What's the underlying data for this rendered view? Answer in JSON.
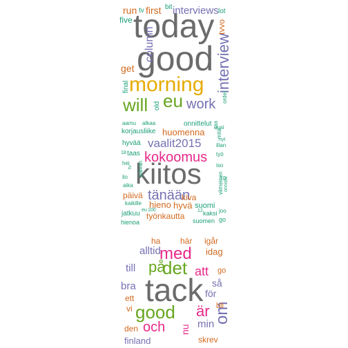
{
  "colors": {
    "gray": "#6b6b6b",
    "orange": "#d2691e",
    "teal": "#1b9e77",
    "purple": "#7570b3",
    "pink": "#e7298a",
    "green": "#66a61e",
    "gold": "#e6ab02"
  },
  "clouds": [
    {
      "name": "english-cloud",
      "words": [
        {
          "text": "today",
          "color": "gray"
        },
        {
          "text": "good",
          "color": "gray"
        },
        {
          "text": "morning",
          "color": "gold"
        },
        {
          "text": "interview",
          "color": "purple"
        },
        {
          "text": "will",
          "color": "green"
        },
        {
          "text": "eu",
          "color": "green"
        },
        {
          "text": "work",
          "color": "purple"
        },
        {
          "text": "column",
          "color": "purple"
        },
        {
          "text": "interviews",
          "color": "purple"
        },
        {
          "text": "first",
          "color": "orange"
        },
        {
          "text": "run",
          "color": "orange"
        },
        {
          "text": "get",
          "color": "orange"
        },
        {
          "text": "five",
          "color": "teal"
        },
        {
          "text": "tv",
          "color": "teal"
        },
        {
          "text": "bit",
          "color": "teal"
        },
        {
          "text": "lot",
          "color": "teal"
        },
        {
          "text": "tvvo",
          "color": "orange"
        },
        {
          "text": "final",
          "color": "teal"
        },
        {
          "text": "old",
          "color": "teal"
        },
        {
          "text": "order",
          "color": "teal"
        }
      ]
    },
    {
      "name": "finnish-cloud",
      "words": [
        {
          "text": "kiitos",
          "color": "gray"
        },
        {
          "text": "kokoomus",
          "color": "pink"
        },
        {
          "text": "vaalit2015",
          "color": "purple"
        },
        {
          "text": "tänään",
          "color": "purple"
        },
        {
          "text": "huomenna",
          "color": "orange"
        },
        {
          "text": "hieno",
          "color": "orange"
        },
        {
          "text": "hyvä",
          "color": "orange"
        },
        {
          "text": "kiva",
          "color": "orange"
        },
        {
          "text": "päivä",
          "color": "orange"
        },
        {
          "text": "työnkautta",
          "color": "orange"
        },
        {
          "text": "suomi",
          "color": "teal"
        },
        {
          "text": "onnittelut",
          "color": "teal"
        },
        {
          "text": "korjausliike",
          "color": "teal"
        },
        {
          "text": "aamu",
          "color": "teal"
        },
        {
          "text": "alkaa",
          "color": "teal"
        },
        {
          "text": "uusi",
          "color": "teal"
        },
        {
          "text": "mitä",
          "color": "teal"
        },
        {
          "text": "illan",
          "color": "teal"
        },
        {
          "text": "hyvää",
          "color": "teal"
        },
        {
          "text": "taas",
          "color": "teal"
        },
        {
          "text": "työ",
          "color": "teal"
        },
        {
          "text": "iso",
          "color": "teal"
        },
        {
          "text": "hei",
          "color": "teal"
        },
        {
          "text": "ilo",
          "color": "teal"
        },
        {
          "text": "aika",
          "color": "teal"
        },
        {
          "text": "kaikille",
          "color": "teal"
        },
        {
          "text": "jatkuu",
          "color": "teal"
        },
        {
          "text": "kaksi",
          "color": "teal"
        },
        {
          "text": "hienoa",
          "color": "teal"
        },
        {
          "text": "suomen",
          "color": "teal"
        },
        {
          "text": "go",
          "color": "teal"
        },
        {
          "text": "joo",
          "color": "teal"
        },
        {
          "text": "eu",
          "color": "teal"
        },
        {
          "text": "100",
          "color": "teal"
        },
        {
          "text": "12",
          "color": "teal"
        },
        {
          "text": "18",
          "color": "teal"
        },
        {
          "text": "10",
          "color": "teal"
        },
        {
          "text": "tv",
          "color": "teal"
        },
        {
          "text": "päivän",
          "color": "teal"
        },
        {
          "text": "viimeinen",
          "color": "teal"
        },
        {
          "text": "onnistu",
          "color": "teal"
        },
        {
          "text": "nyt",
          "color": "teal"
        },
        {
          "text": "sitä",
          "color": "teal"
        }
      ]
    },
    {
      "name": "swedish-cloud",
      "words": [
        {
          "text": "tack",
          "color": "gray"
        },
        {
          "text": "med",
          "color": "pink"
        },
        {
          "text": "det",
          "color": "green"
        },
        {
          "text": "på",
          "color": "green"
        },
        {
          "text": "att",
          "color": "pink"
        },
        {
          "text": "good",
          "color": "green"
        },
        {
          "text": "om",
          "color": "purple"
        },
        {
          "text": "och",
          "color": "pink"
        },
        {
          "text": "är",
          "color": "pink"
        },
        {
          "text": "alltid",
          "color": "purple"
        },
        {
          "text": "ha",
          "color": "orange"
        },
        {
          "text": "här",
          "color": "orange"
        },
        {
          "text": "igår",
          "color": "orange"
        },
        {
          "text": "idag",
          "color": "orange"
        },
        {
          "text": "till",
          "color": "purple"
        },
        {
          "text": "go",
          "color": "orange"
        },
        {
          "text": "bra",
          "color": "purple"
        },
        {
          "text": "så",
          "color": "purple"
        },
        {
          "text": "för",
          "color": "purple"
        },
        {
          "text": "ett",
          "color": "orange"
        },
        {
          "text": "vi",
          "color": "orange"
        },
        {
          "text": "bli",
          "color": "orange"
        },
        {
          "text": "min",
          "color": "purple"
        },
        {
          "text": "den",
          "color": "orange"
        },
        {
          "text": "nu",
          "color": "pink"
        },
        {
          "text": "finland",
          "color": "purple"
        },
        {
          "text": "skrev",
          "color": "orange"
        }
      ]
    }
  ]
}
